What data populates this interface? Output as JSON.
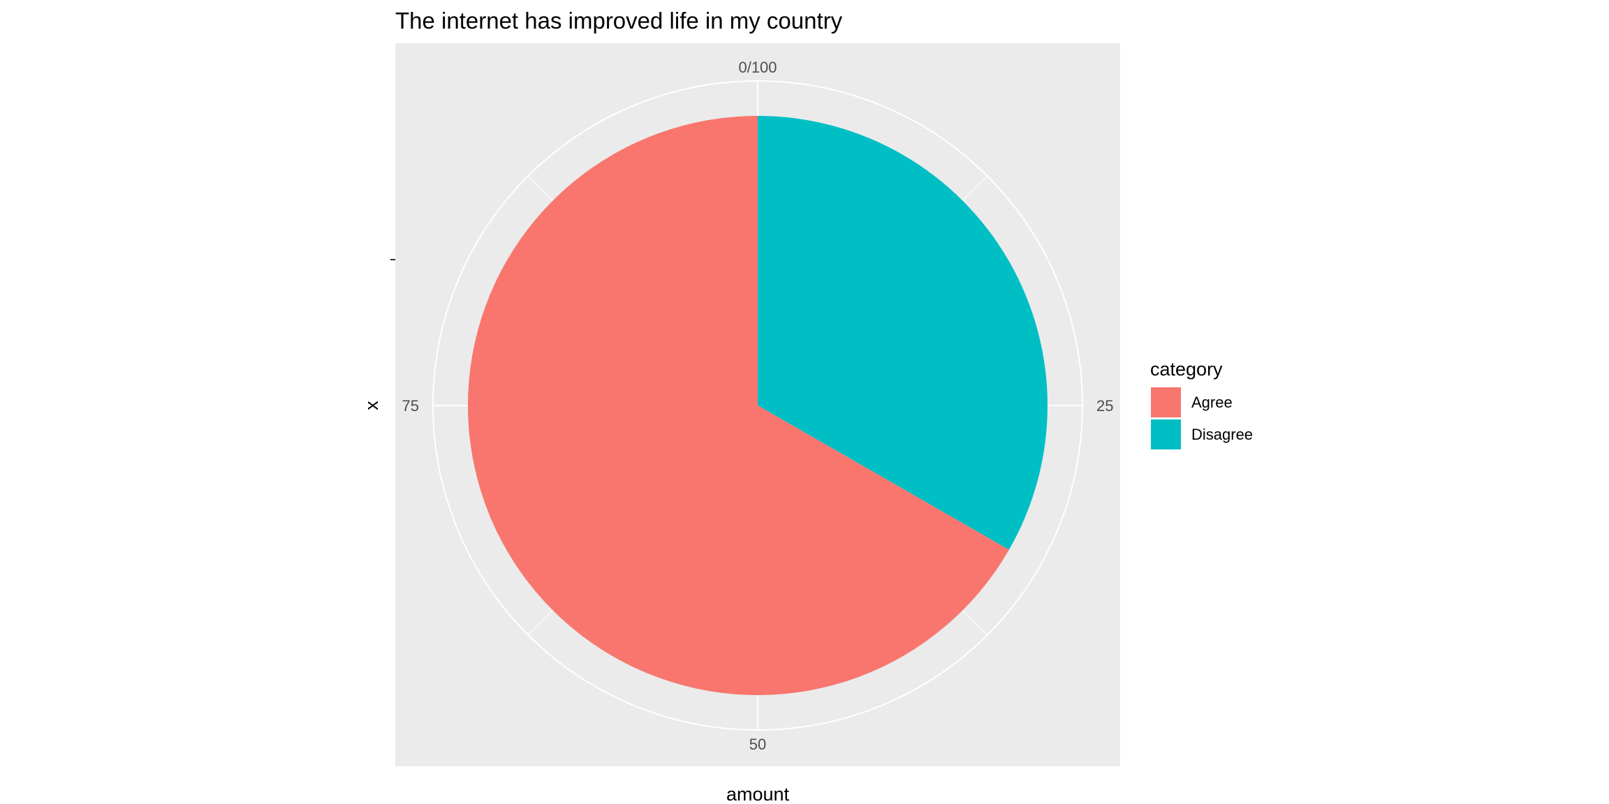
{
  "chart_data": {
    "type": "pie",
    "title": "The internet has improved life in my country",
    "xlabel": "amount",
    "ylabel": "x",
    "theta_ticks": [
      {
        "value": 0,
        "label": "0/100"
      },
      {
        "value": 25,
        "label": "25"
      },
      {
        "value": 50,
        "label": "50"
      },
      {
        "value": 75,
        "label": "75"
      }
    ],
    "slices": [
      {
        "label": "Agree",
        "value": 66.7,
        "color": "#F8766D"
      },
      {
        "label": "Disagree",
        "value": 33.3,
        "color": "#00BFC4"
      }
    ],
    "stack_order": [
      "Disagree",
      "Agree"
    ],
    "direction": "clockwise",
    "start": "top",
    "legend": {
      "title": "category",
      "entries": [
        {
          "label": "Agree",
          "color": "#F8766D"
        },
        {
          "label": "Disagree",
          "color": "#00BFC4"
        }
      ],
      "position": "right"
    },
    "panel_background": "#EBEBEB",
    "grid": true,
    "grid_color": "#FFFFFF"
  }
}
